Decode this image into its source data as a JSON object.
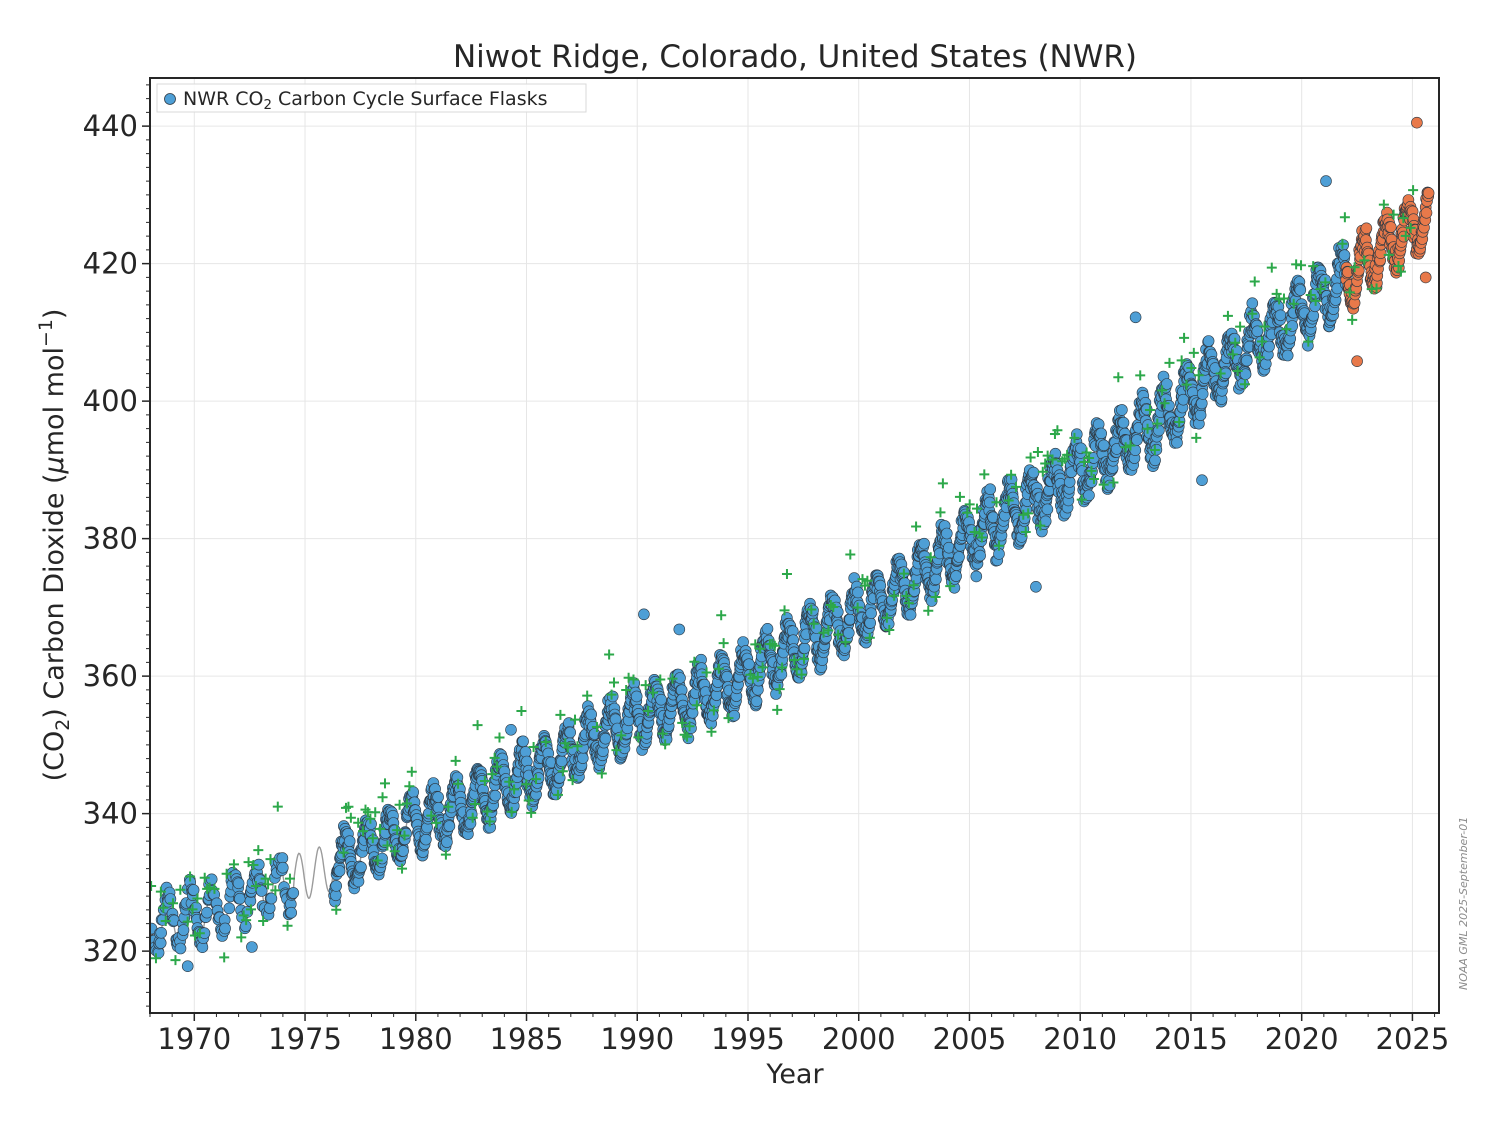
{
  "chart_data": {
    "type": "scatter",
    "title": "Niwot Ridge, Colorado, United States (NWR)",
    "xlabel": "Year",
    "ylabel": {
      "prefix": "(CO",
      "sub": "2",
      "middle": ") Carbon Dioxide (",
      "mu": "μ",
      "unit": "mol mol",
      "sup": "−1",
      "suffix": ")"
    },
    "xlim": [
      1968.0,
      2026.2
    ],
    "ylim": [
      311,
      447
    ],
    "xticks": [
      1970,
      1975,
      1980,
      1985,
      1990,
      1995,
      2000,
      2005,
      2010,
      2015,
      2020,
      2025
    ],
    "yticks": [
      320,
      340,
      360,
      380,
      400,
      420,
      440
    ],
    "grid": true,
    "legend": {
      "position": "top-left",
      "label_prefix": "NWR CO",
      "label_sub": "2",
      "label_suffix": " Carbon Cycle Surface Flasks"
    },
    "credit": "NOAA GML 2025-September-01",
    "colors": {
      "flask": "#4e9fd6",
      "flask_edge": "#2f3a44",
      "preliminary": "#e8794a",
      "flagged": "#2ca84a",
      "trend": "#8a8a8a"
    },
    "trend_points": [
      {
        "year": 1968,
        "ppm": 323.2
      },
      {
        "year": 1970,
        "ppm": 325.3
      },
      {
        "year": 1972,
        "ppm": 327.3
      },
      {
        "year": 1974,
        "ppm": 330.0
      },
      {
        "year": 1976,
        "ppm": 332.0
      },
      {
        "year": 1978,
        "ppm": 335.0
      },
      {
        "year": 1980,
        "ppm": 338.5
      },
      {
        "year": 1982,
        "ppm": 341.0
      },
      {
        "year": 1984,
        "ppm": 344.2
      },
      {
        "year": 1986,
        "ppm": 346.8
      },
      {
        "year": 1988,
        "ppm": 351.0
      },
      {
        "year": 1990,
        "ppm": 354.0
      },
      {
        "year": 1992,
        "ppm": 356.2
      },
      {
        "year": 1994,
        "ppm": 358.5
      },
      {
        "year": 1996,
        "ppm": 362.0
      },
      {
        "year": 1998,
        "ppm": 366.0
      },
      {
        "year": 2000,
        "ppm": 369.0
      },
      {
        "year": 2002,
        "ppm": 373.0
      },
      {
        "year": 2004,
        "ppm": 377.5
      },
      {
        "year": 2006,
        "ppm": 382.0
      },
      {
        "year": 2008,
        "ppm": 386.0
      },
      {
        "year": 2010,
        "ppm": 390.0
      },
      {
        "year": 2012,
        "ppm": 394.0
      },
      {
        "year": 2014,
        "ppm": 398.0
      },
      {
        "year": 2016,
        "ppm": 404.0
      },
      {
        "year": 2018,
        "ppm": 408.5
      },
      {
        "year": 2020,
        "ppm": 413.0
      },
      {
        "year": 2022,
        "ppm": 418.0
      },
      {
        "year": 2024,
        "ppm": 423.0
      },
      {
        "year": 2025.7,
        "ppm": 427.0
      }
    ],
    "seasonal_amplitude_ppm": 7.5,
    "data_gap_years": [
      1974.5,
      1976.3
    ],
    "preliminary_from_year": 2022.0,
    "notable_points": [
      {
        "year": 1969.7,
        "ppm": 317.8
      },
      {
        "year": 1972.6,
        "ppm": 320.6
      },
      {
        "year": 1984.3,
        "ppm": 352.2
      },
      {
        "year": 1990.3,
        "ppm": 369.0
      },
      {
        "year": 1991.9,
        "ppm": 366.8
      },
      {
        "year": 2008.0,
        "ppm": 373.0
      },
      {
        "year": 2012.5,
        "ppm": 412.2
      },
      {
        "year": 2015.5,
        "ppm": 388.5
      },
      {
        "year": 2021.1,
        "ppm": 432.0
      },
      {
        "year": 2022.5,
        "ppm": 405.8
      },
      {
        "year": 2025.2,
        "ppm": 440.5
      },
      {
        "year": 2025.6,
        "ppm": 418.0
      }
    ]
  }
}
